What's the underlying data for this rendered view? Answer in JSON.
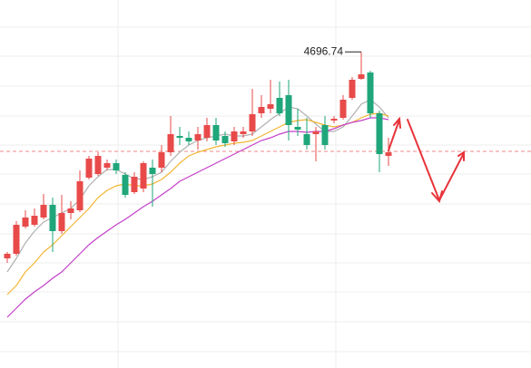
{
  "chart_data": {
    "type": "candlestick",
    "ylim": [
      4348,
      4754
    ],
    "up_color": "#e84a4a",
    "down_color": "#1fa67a",
    "open": [
      4469,
      4474,
      4504,
      4506,
      4514,
      4528,
      4499,
      4519,
      4522,
      4558,
      4562,
      4569,
      4574,
      4561,
      4542,
      4546,
      4569,
      4569,
      4586,
      4604,
      4602,
      4599,
      4602,
      4616,
      4604,
      4598,
      4606,
      4609,
      4629,
      4634,
      4646,
      4649,
      4614,
      4606,
      4606,
      4616,
      4621,
      4624,
      4646,
      4667,
      4674,
      4629,
      4582
    ],
    "high": [
      4476,
      4510,
      4522,
      4524,
      4540,
      4536,
      4539,
      4532,
      4566,
      4582,
      4586,
      4578,
      4578,
      4564,
      4564,
      4576,
      4578,
      4594,
      4626,
      4614,
      4609,
      4614,
      4624,
      4624,
      4609,
      4614,
      4614,
      4656,
      4649,
      4666,
      4664,
      4666,
      4634,
      4624,
      4614,
      4626,
      4626,
      4649,
      4669,
      4696.74,
      4676,
      4632,
      4602
    ],
    "low": [
      4464,
      4472,
      4502,
      4504,
      4512,
      4476,
      4496,
      4512,
      4520,
      4556,
      4560,
      4566,
      4562,
      4536,
      4540,
      4542,
      4526,
      4564,
      4582,
      4594,
      4594,
      4589,
      4598,
      4594,
      4592,
      4594,
      4602,
      4604,
      4624,
      4629,
      4626,
      4599,
      4604,
      4589,
      4576,
      4589,
      4618,
      4622,
      4644,
      4666,
      4624,
      4564,
      4571
    ],
    "close": [
      4474,
      4506,
      4514,
      4516,
      4528,
      4499,
      4519,
      4524,
      4554,
      4579,
      4582,
      4574,
      4566,
      4539,
      4559,
      4574,
      4562,
      4586,
      4606,
      4602,
      4598,
      4606,
      4616,
      4599,
      4596,
      4609,
      4609,
      4628,
      4636,
      4639,
      4629,
      4616,
      4611,
      4594,
      4609,
      4594,
      4623,
      4644,
      4666,
      4672,
      4629,
      4584,
      4586
    ],
    "overlays": [
      {
        "color": "#b0b0b0",
        "values": [
          4454,
          4469,
          4486,
          4499,
          4509,
          4514,
          4519,
          4524,
          4534,
          4549,
          4559,
          4567,
          4567,
          4562,
          4557,
          4556,
          4559,
          4564,
          4576,
          4586,
          4594,
          4599,
          4602,
          4604,
          4606,
          4604,
          4604,
          4606,
          4614,
          4622,
          4629,
          4636,
          4634,
          4626,
          4617,
          4609,
          4609,
          4614,
          4626,
          4639,
          4644,
          4636,
          4624
        ]
      },
      {
        "color": "#f2b632",
        "values": [
          4429,
          4439,
          4454,
          4464,
          4476,
          4484,
          4494,
          4504,
          4514,
          4524,
          4536,
          4544,
          4549,
          4551,
          4549,
          4549,
          4551,
          4556,
          4564,
          4574,
          4582,
          4586,
          4589,
          4592,
          4594,
          4596,
          4597,
          4599,
          4604,
          4609,
          4614,
          4619,
          4621,
          4622,
          4619,
          4616,
          4614,
          4616,
          4619,
          4624,
          4628,
          4629,
          4626
        ]
      },
      {
        "color": "#c43fc9",
        "values": [
          4404,
          4414,
          4424,
          4432,
          4439,
          4447,
          4454,
          4464,
          4474,
          4484,
          4492,
          4499,
          4506,
          4512,
          4519,
          4526,
          4532,
          4539,
          4546,
          4554,
          4559,
          4564,
          4569,
          4574,
          4579,
          4584,
          4589,
          4594,
          4599,
          4602,
          4606,
          4609,
          4609,
          4608,
          4609,
          4609,
          4612,
          4616,
          4619,
          4621,
          4624,
          4624,
          4622
        ]
      }
    ],
    "price_line": 4587,
    "grid": true,
    "grid_y": [
      4724,
      4692,
      4659,
      4626,
      4594,
      4562,
      4529,
      4496,
      4464,
      4432,
      4399,
      4366
    ],
    "grid_x": [
      12.2,
      36.2
    ],
    "peak_label_index": 39
  }
}
